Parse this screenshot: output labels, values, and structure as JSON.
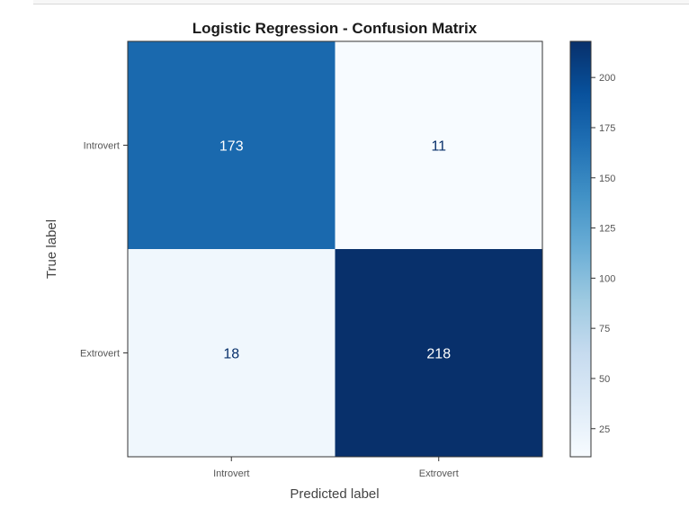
{
  "chart_data": {
    "type": "heatmap",
    "title": "Logistic Regression - Confusion Matrix",
    "xlabel": "Predicted label",
    "ylabel": "True label",
    "x_categories": [
      "Introvert",
      "Extrovert"
    ],
    "y_categories": [
      "Introvert",
      "Extrovert"
    ],
    "matrix": [
      [
        173,
        11
      ],
      [
        18,
        218
      ]
    ],
    "colormap": "Blues",
    "color_range": [
      11,
      218
    ],
    "colorbar_ticks": [
      25,
      50,
      75,
      100,
      125,
      150,
      175,
      200
    ],
    "grid": false
  }
}
